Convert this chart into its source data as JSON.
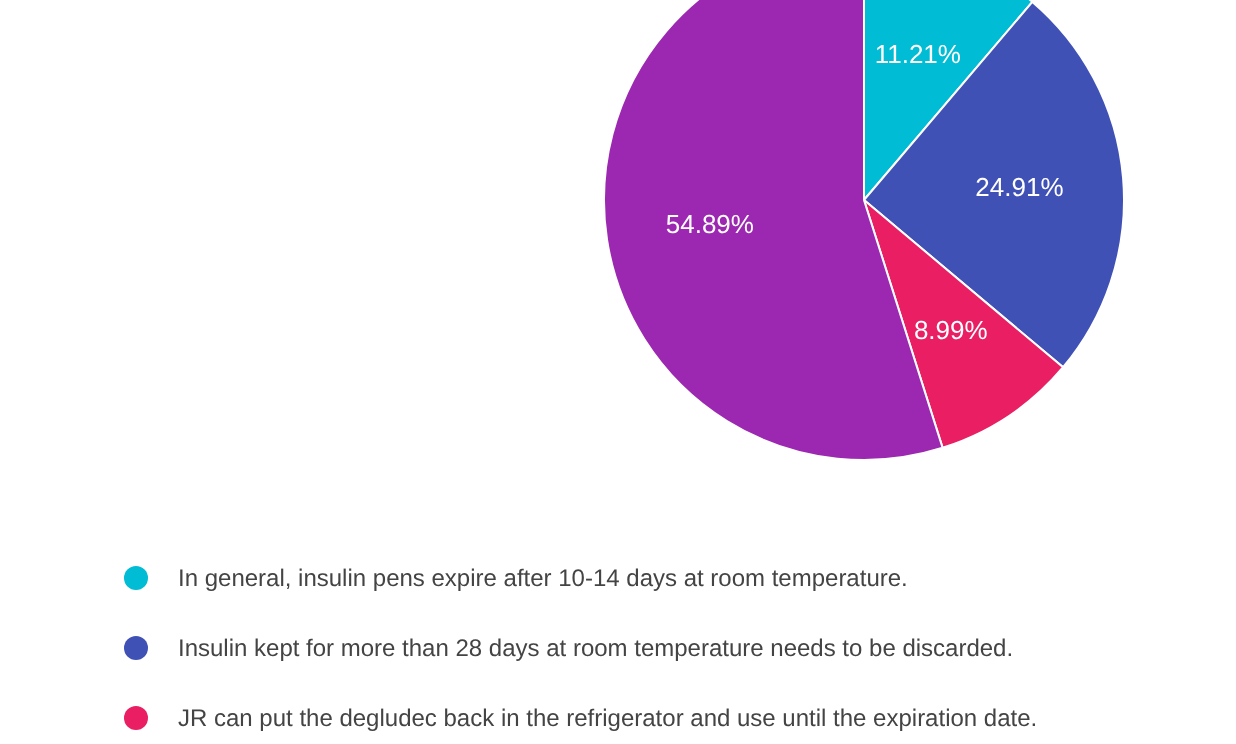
{
  "chart_data": {
    "type": "pie",
    "categories": [
      "In general, insulin pens expire after 10-14 days at room temperature.",
      "Insulin kept for more than 28 days at room temperature needs to be discarded.",
      "JR can put the degludec back in the refrigerator and use until the expiration date.",
      null
    ],
    "values": [
      11.21,
      24.91,
      8.99,
      54.89
    ],
    "colors": [
      "#00bcd4",
      "#3f51b5",
      "#e91e63",
      "#9c27b0"
    ],
    "value_labels": [
      "11.21%",
      "24.91%",
      "8.99%",
      "54.89%"
    ],
    "legend": "bottom"
  }
}
